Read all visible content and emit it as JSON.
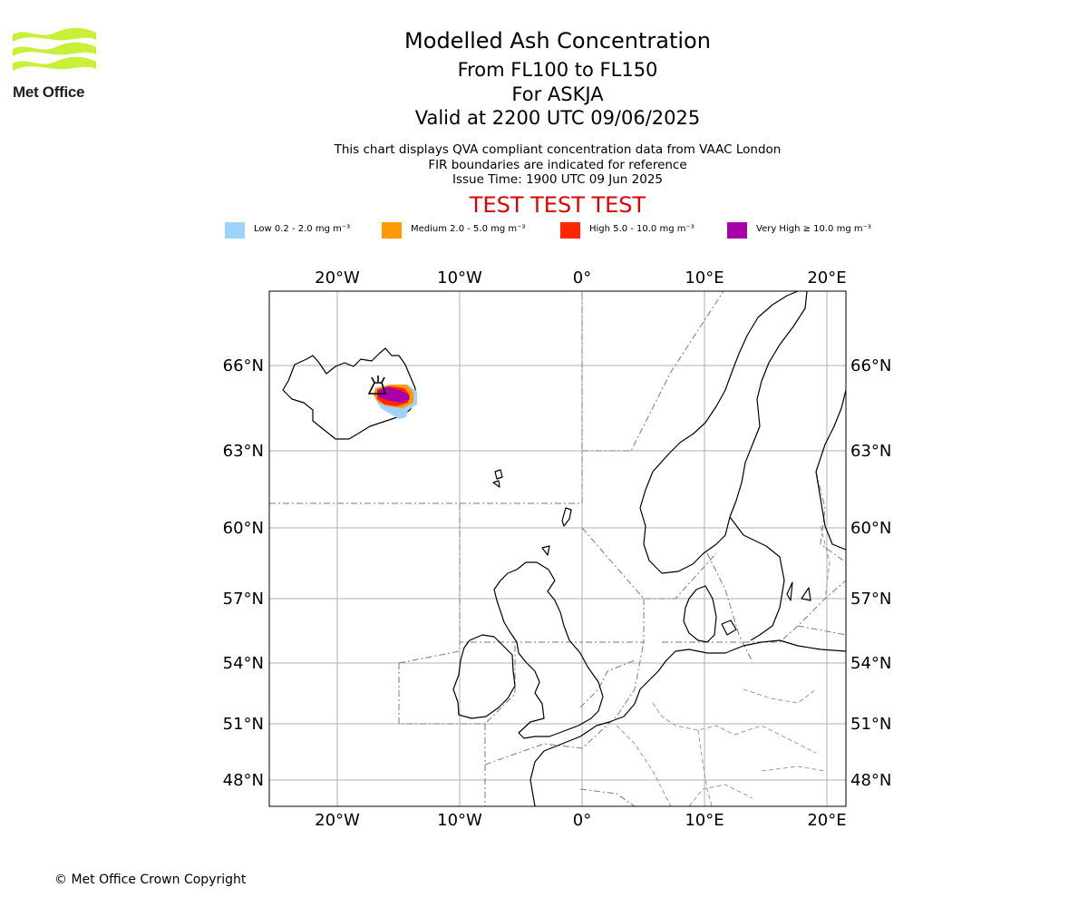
{
  "logo": {
    "text": "Met Office",
    "color": "#c8f037"
  },
  "title": {
    "main": "Modelled Ash Concentration",
    "levels": "From FL100 to FL150",
    "volcano": "For ASKJA",
    "valid": "Valid at 2200 UTC 09/06/2025"
  },
  "subtitle": {
    "line1": "This chart displays QVA compliant concentration data from VAAC London",
    "line2": "FIR boundaries are indicated for reference",
    "line3": "Issue Time: 1900 UTC 09 Jun 2025"
  },
  "test_banner": {
    "text": "TEST TEST TEST",
    "color": "#e00000"
  },
  "legend": [
    {
      "label": "Low 0.2 - 2.0 mg m⁻³",
      "color": "#a0d2ff"
    },
    {
      "label": "Medium 2.0 - 5.0 mg m⁻³",
      "color": "#ff9900"
    },
    {
      "label": "High 5.0 - 10.0 mg m⁻³",
      "color": "#ff2800"
    },
    {
      "label": "Very High  ≥  10.0 mg m⁻³",
      "color": "#aa00aa"
    }
  ],
  "map": {
    "projection": "stereographic",
    "lon_ticks": [
      "20°W",
      "10°W",
      "0°",
      "10°E",
      "20°E"
    ],
    "lat_ticks": [
      "66°N",
      "63°N",
      "60°N",
      "57°N",
      "54°N",
      "51°N",
      "48°N"
    ],
    "extent": {
      "lon": [
        -25,
        21
      ],
      "lat": [
        47,
        68
      ]
    },
    "grid": true,
    "volcano_marker": "volcano-icon",
    "fir_boundaries": true
  },
  "copyright": "© Met Office Crown Copyright"
}
